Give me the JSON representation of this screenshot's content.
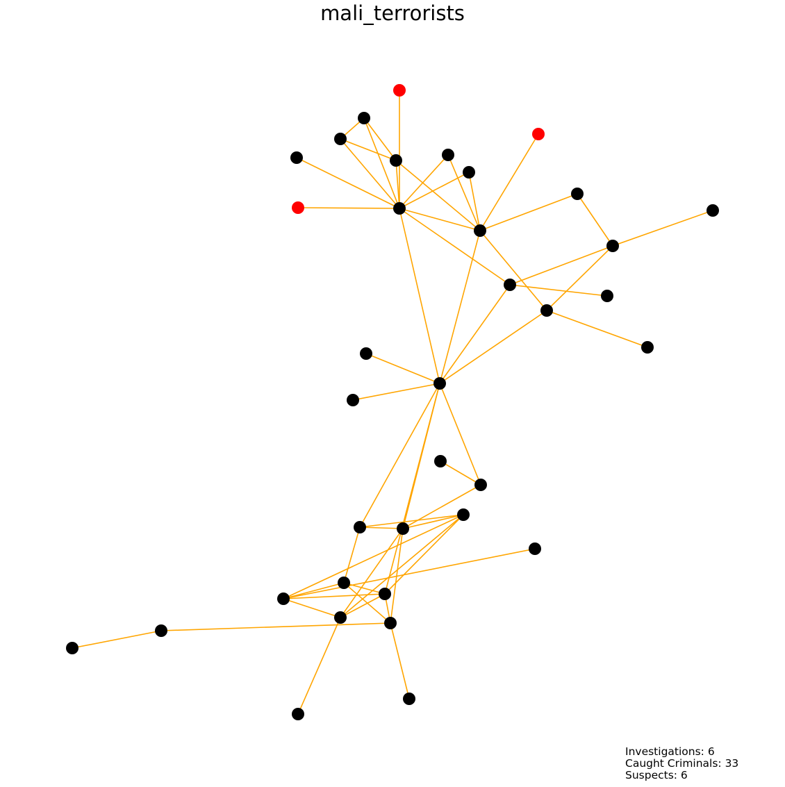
{
  "title": "mali_terrorists",
  "stats": {
    "investigations": "Investigations: 6",
    "caught": "Caught Criminals: 33",
    "suspects": "Suspects: 6"
  },
  "colors": {
    "edge": "#FFA500",
    "node_default": "#000000",
    "node_highlight": "#FF0000"
  },
  "nodes": [
    {
      "id": "n0",
      "status": "highlight"
    },
    {
      "id": "n1",
      "status": "default"
    },
    {
      "id": "n2",
      "status": "default"
    },
    {
      "id": "n3",
      "status": "highlight"
    },
    {
      "id": "n4",
      "status": "default"
    },
    {
      "id": "n5",
      "status": "default"
    },
    {
      "id": "n6",
      "status": "default"
    },
    {
      "id": "n7",
      "status": "default"
    },
    {
      "id": "n8",
      "status": "highlight"
    },
    {
      "id": "n9",
      "status": "default"
    },
    {
      "id": "n10",
      "status": "default"
    },
    {
      "id": "n11",
      "status": "default"
    },
    {
      "id": "n12",
      "status": "default"
    },
    {
      "id": "n13",
      "status": "default"
    },
    {
      "id": "n14",
      "status": "default"
    },
    {
      "id": "n15",
      "status": "default"
    },
    {
      "id": "n16",
      "status": "default"
    },
    {
      "id": "n17",
      "status": "default"
    },
    {
      "id": "n18",
      "status": "default"
    },
    {
      "id": "n19",
      "status": "default"
    },
    {
      "id": "n20",
      "status": "default"
    },
    {
      "id": "n21",
      "status": "default"
    },
    {
      "id": "n22",
      "status": "default"
    },
    {
      "id": "n23",
      "status": "default"
    },
    {
      "id": "n24",
      "status": "default"
    },
    {
      "id": "n25",
      "status": "default"
    },
    {
      "id": "n26",
      "status": "default"
    },
    {
      "id": "n27",
      "status": "default"
    },
    {
      "id": "n28",
      "status": "default"
    },
    {
      "id": "n29",
      "status": "default"
    },
    {
      "id": "n30",
      "status": "default"
    },
    {
      "id": "n31",
      "status": "default"
    },
    {
      "id": "n32",
      "status": "default"
    },
    {
      "id": "n33",
      "status": "default"
    },
    {
      "id": "n34",
      "status": "default"
    },
    {
      "id": "n35",
      "status": "default"
    },
    {
      "id": "n36",
      "status": "default"
    },
    {
      "id": "n37",
      "status": "default"
    }
  ],
  "edges": [
    [
      "n0",
      "n9"
    ],
    [
      "n1",
      "n2"
    ],
    [
      "n1",
      "n5"
    ],
    [
      "n1",
      "n9"
    ],
    [
      "n2",
      "n5"
    ],
    [
      "n2",
      "n9"
    ],
    [
      "n3",
      "n10"
    ],
    [
      "n4",
      "n9"
    ],
    [
      "n5",
      "n9"
    ],
    [
      "n5",
      "n10"
    ],
    [
      "n6",
      "n9"
    ],
    [
      "n6",
      "n10"
    ],
    [
      "n7",
      "n9"
    ],
    [
      "n7",
      "n10"
    ],
    [
      "n8",
      "n9"
    ],
    [
      "n9",
      "n10"
    ],
    [
      "n9",
      "n13"
    ],
    [
      "n9",
      "n19"
    ],
    [
      "n10",
      "n11"
    ],
    [
      "n10",
      "n16"
    ],
    [
      "n10",
      "n19"
    ],
    [
      "n11",
      "n12"
    ],
    [
      "n12",
      "n13"
    ],
    [
      "n12",
      "n14"
    ],
    [
      "n12",
      "n16"
    ],
    [
      "n13",
      "n15"
    ],
    [
      "n13",
      "n19"
    ],
    [
      "n16",
      "n17"
    ],
    [
      "n16",
      "n19"
    ],
    [
      "n18",
      "n19"
    ],
    [
      "n19",
      "n20"
    ],
    [
      "n19",
      "n22"
    ],
    [
      "n19",
      "n23"
    ],
    [
      "n19",
      "n24"
    ],
    [
      "n19",
      "n26"
    ],
    [
      "n21",
      "n22"
    ],
    [
      "n22",
      "n24"
    ],
    [
      "n23",
      "n24"
    ],
    [
      "n23",
      "n25"
    ],
    [
      "n23",
      "n27"
    ],
    [
      "n24",
      "n27"
    ],
    [
      "n24",
      "n29"
    ],
    [
      "n24",
      "n30"
    ],
    [
      "n25",
      "n26"
    ],
    [
      "n25",
      "n28"
    ],
    [
      "n25",
      "n30"
    ],
    [
      "n26",
      "n27"
    ],
    [
      "n26",
      "n28"
    ],
    [
      "n26",
      "n29"
    ],
    [
      "n26",
      "n30"
    ],
    [
      "n27",
      "n28"
    ],
    [
      "n27",
      "n29"
    ],
    [
      "n28",
      "n29"
    ],
    [
      "n28",
      "n33"
    ],
    [
      "n29",
      "n32"
    ],
    [
      "n30",
      "n31"
    ],
    [
      "n31",
      "n34"
    ]
  ]
}
